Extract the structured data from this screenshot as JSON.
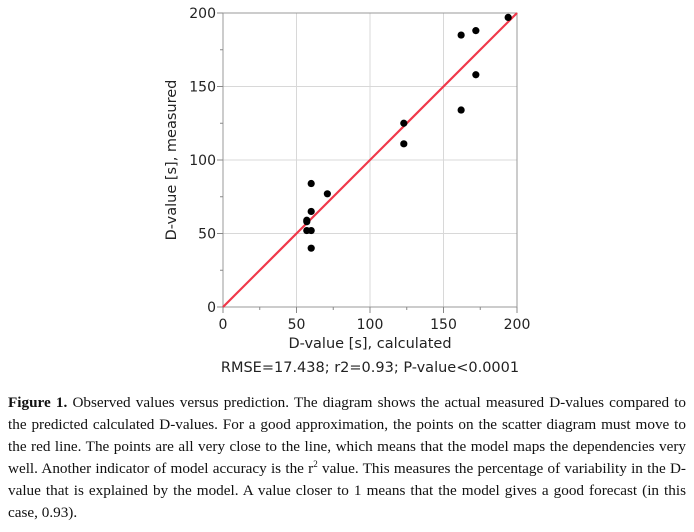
{
  "chart_data": {
    "type": "scatter",
    "xlabel": "D-value [s], calculated",
    "ylabel": "D-value [s], measured",
    "subtitle": "RMSE=17.438; r2=0.93; P-value<0.0001",
    "xlim": [
      0,
      200
    ],
    "ylim": [
      0,
      200
    ],
    "xticks": [
      "0",
      "50",
      "100",
      "150",
      "200"
    ],
    "yticks": [
      "0",
      "50",
      "100",
      "150",
      "200"
    ],
    "grid": true,
    "point_color": "#000000",
    "reference_line": {
      "from": [
        0,
        0
      ],
      "to": [
        200,
        200
      ],
      "color": "#f0384a"
    },
    "points": [
      {
        "x": 194,
        "y": 197
      },
      {
        "x": 172,
        "y": 188
      },
      {
        "x": 162,
        "y": 185
      },
      {
        "x": 172,
        "y": 158
      },
      {
        "x": 162,
        "y": 134
      },
      {
        "x": 123,
        "y": 125
      },
      {
        "x": 123,
        "y": 111
      },
      {
        "x": 60,
        "y": 84
      },
      {
        "x": 71,
        "y": 77
      },
      {
        "x": 60,
        "y": 65
      },
      {
        "x": 57,
        "y": 59
      },
      {
        "x": 57,
        "y": 58
      },
      {
        "x": 57,
        "y": 52
      },
      {
        "x": 60,
        "y": 52
      },
      {
        "x": 60,
        "y": 40
      }
    ]
  },
  "caption": {
    "label": "Figure 1.",
    "text_before": " Observed values versus prediction.  The diagram shows the actual measured D-values compared to the predicted calculated D-values. For a good approximation, the points on the scatter diagram must move to the red line. The points are all very close to the line, which means that the model maps the dependencies very well. Another indicator of model accuracy is the r",
    "sup": "2",
    "text_after": " value. This measures the percentage of variability in the D-value that is explained by the model.  A value closer to 1 means that the model gives a good forecast (in this case, 0.93)."
  }
}
